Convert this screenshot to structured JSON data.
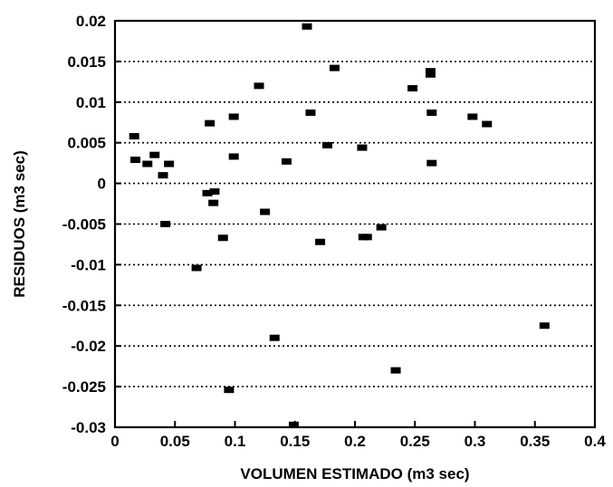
{
  "chart_data": {
    "type": "scatter",
    "title": "",
    "xlabel": "VOLUMEN ESTIMADO (m3 sec)",
    "ylabel": "RESIDUOS (m3 sec)",
    "xlim": [
      0,
      0.4
    ],
    "ylim": [
      -0.03,
      0.02
    ],
    "grid": "horizontal dotted",
    "x_ticks": [
      {
        "value": 0,
        "label": "0"
      },
      {
        "value": 0.05,
        "label": "0.05"
      },
      {
        "value": 0.1,
        "label": "0.1"
      },
      {
        "value": 0.15,
        "label": "0.15"
      },
      {
        "value": 0.2,
        "label": "0.2"
      },
      {
        "value": 0.25,
        "label": "0.25"
      },
      {
        "value": 0.3,
        "label": "0.3"
      },
      {
        "value": 0.35,
        "label": "0.35"
      },
      {
        "value": 0.4,
        "label": "0.4"
      }
    ],
    "y_ticks": [
      {
        "value": 0.02,
        "label": "0.02"
      },
      {
        "value": 0.015,
        "label": "0.015"
      },
      {
        "value": 0.01,
        "label": "0.01"
      },
      {
        "value": 0.005,
        "label": "0.005"
      },
      {
        "value": 0,
        "label": "0"
      },
      {
        "value": -0.005,
        "label": "-0.005"
      },
      {
        "value": -0.01,
        "label": "-0.01"
      },
      {
        "value": -0.015,
        "label": "-0.015"
      },
      {
        "value": -0.02,
        "label": "-0.02"
      },
      {
        "value": -0.025,
        "label": "-0.025"
      },
      {
        "value": -0.03,
        "label": "-0.03"
      }
    ],
    "points": [
      {
        "x": 0.016,
        "y": 0.0058
      },
      {
        "x": 0.017,
        "y": 0.0029
      },
      {
        "x": 0.027,
        "y": 0.0024
      },
      {
        "x": 0.033,
        "y": 0.0035
      },
      {
        "x": 0.04,
        "y": 0.001
      },
      {
        "x": 0.045,
        "y": 0.0024
      },
      {
        "x": 0.042,
        "y": -0.005
      },
      {
        "x": 0.068,
        "y": -0.0104
      },
      {
        "x": 0.077,
        "y": -0.0012
      },
      {
        "x": 0.082,
        "y": -0.0024
      },
      {
        "x": 0.083,
        "y": -0.001
      },
      {
        "x": 0.079,
        "y": 0.0074
      },
      {
        "x": 0.09,
        "y": -0.0067
      },
      {
        "x": 0.095,
        "y": -0.0254
      },
      {
        "x": 0.099,
        "y": 0.0082
      },
      {
        "x": 0.099,
        "y": 0.0033
      },
      {
        "x": 0.12,
        "y": 0.012
      },
      {
        "x": 0.125,
        "y": -0.0035
      },
      {
        "x": 0.133,
        "y": -0.019
      },
      {
        "x": 0.143,
        "y": 0.0027
      },
      {
        "x": 0.149,
        "y": -0.0297
      },
      {
        "x": 0.16,
        "y": 0.0193
      },
      {
        "x": 0.163,
        "y": 0.0087
      },
      {
        "x": 0.171,
        "y": -0.0072
      },
      {
        "x": 0.177,
        "y": 0.0047
      },
      {
        "x": 0.183,
        "y": 0.0142
      },
      {
        "x": 0.206,
        "y": 0.0044
      },
      {
        "x": 0.207,
        "y": -0.0066
      },
      {
        "x": 0.21,
        "y": -0.0066
      },
      {
        "x": 0.222,
        "y": -0.0054
      },
      {
        "x": 0.234,
        "y": -0.023
      },
      {
        "x": 0.248,
        "y": 0.0117
      },
      {
        "x": 0.263,
        "y": 0.0138
      },
      {
        "x": 0.263,
        "y": 0.0134
      },
      {
        "x": 0.264,
        "y": 0.0087
      },
      {
        "x": 0.264,
        "y": 0.0025
      },
      {
        "x": 0.298,
        "y": 0.0082
      },
      {
        "x": 0.31,
        "y": 0.0073
      },
      {
        "x": 0.358,
        "y": -0.0175
      }
    ]
  }
}
